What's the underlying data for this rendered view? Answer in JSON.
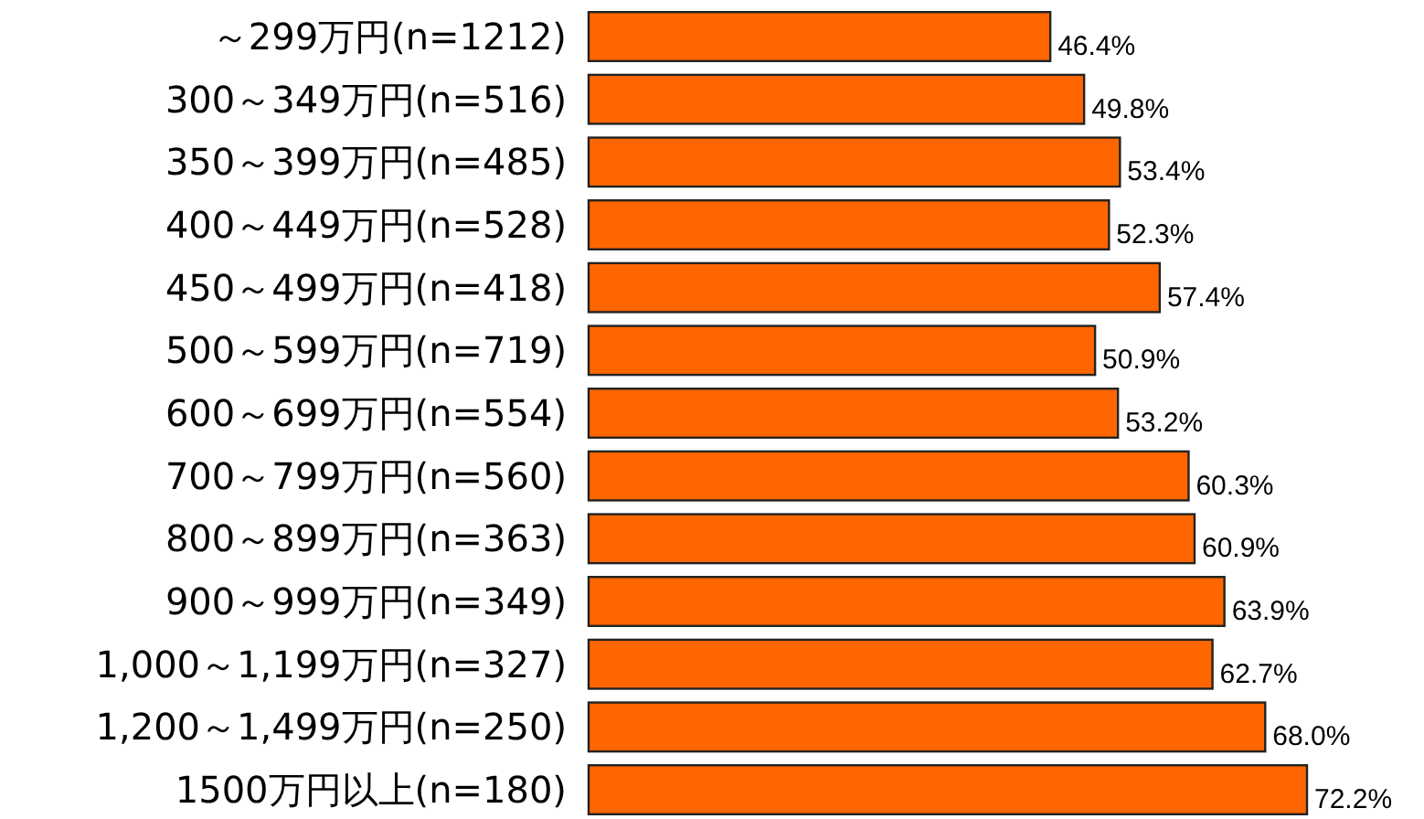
{
  "chart_data": {
    "type": "bar",
    "orientation": "horizontal",
    "color": "#ff6600",
    "categories": [
      "～299万円(n=1212)",
      "300～349万円(n=516)",
      "350～399万円(n=485)",
      "400～449万円(n=528)",
      "450～499万円(n=418)",
      "500～599万円(n=719)",
      "600～699万円(n=554)",
      "700～799万円(n=560)",
      "800～899万円(n=363)",
      "900～999万円(n=349)",
      "1,000～1,199万円(n=327)",
      "1,200～1,499万円(n=250)",
      "1500万円以上(n=180)"
    ],
    "values": [
      46.4,
      49.8,
      53.4,
      52.3,
      57.4,
      50.9,
      53.2,
      60.3,
      60.9,
      63.9,
      62.7,
      68.0,
      72.2
    ],
    "value_labels": [
      "46.4%",
      "49.8%",
      "53.4%",
      "52.3%",
      "57.4%",
      "50.9%",
      "53.2%",
      "60.3%",
      "60.9%",
      "63.9%",
      "62.7%",
      "68.0%",
      "72.2%"
    ]
  }
}
